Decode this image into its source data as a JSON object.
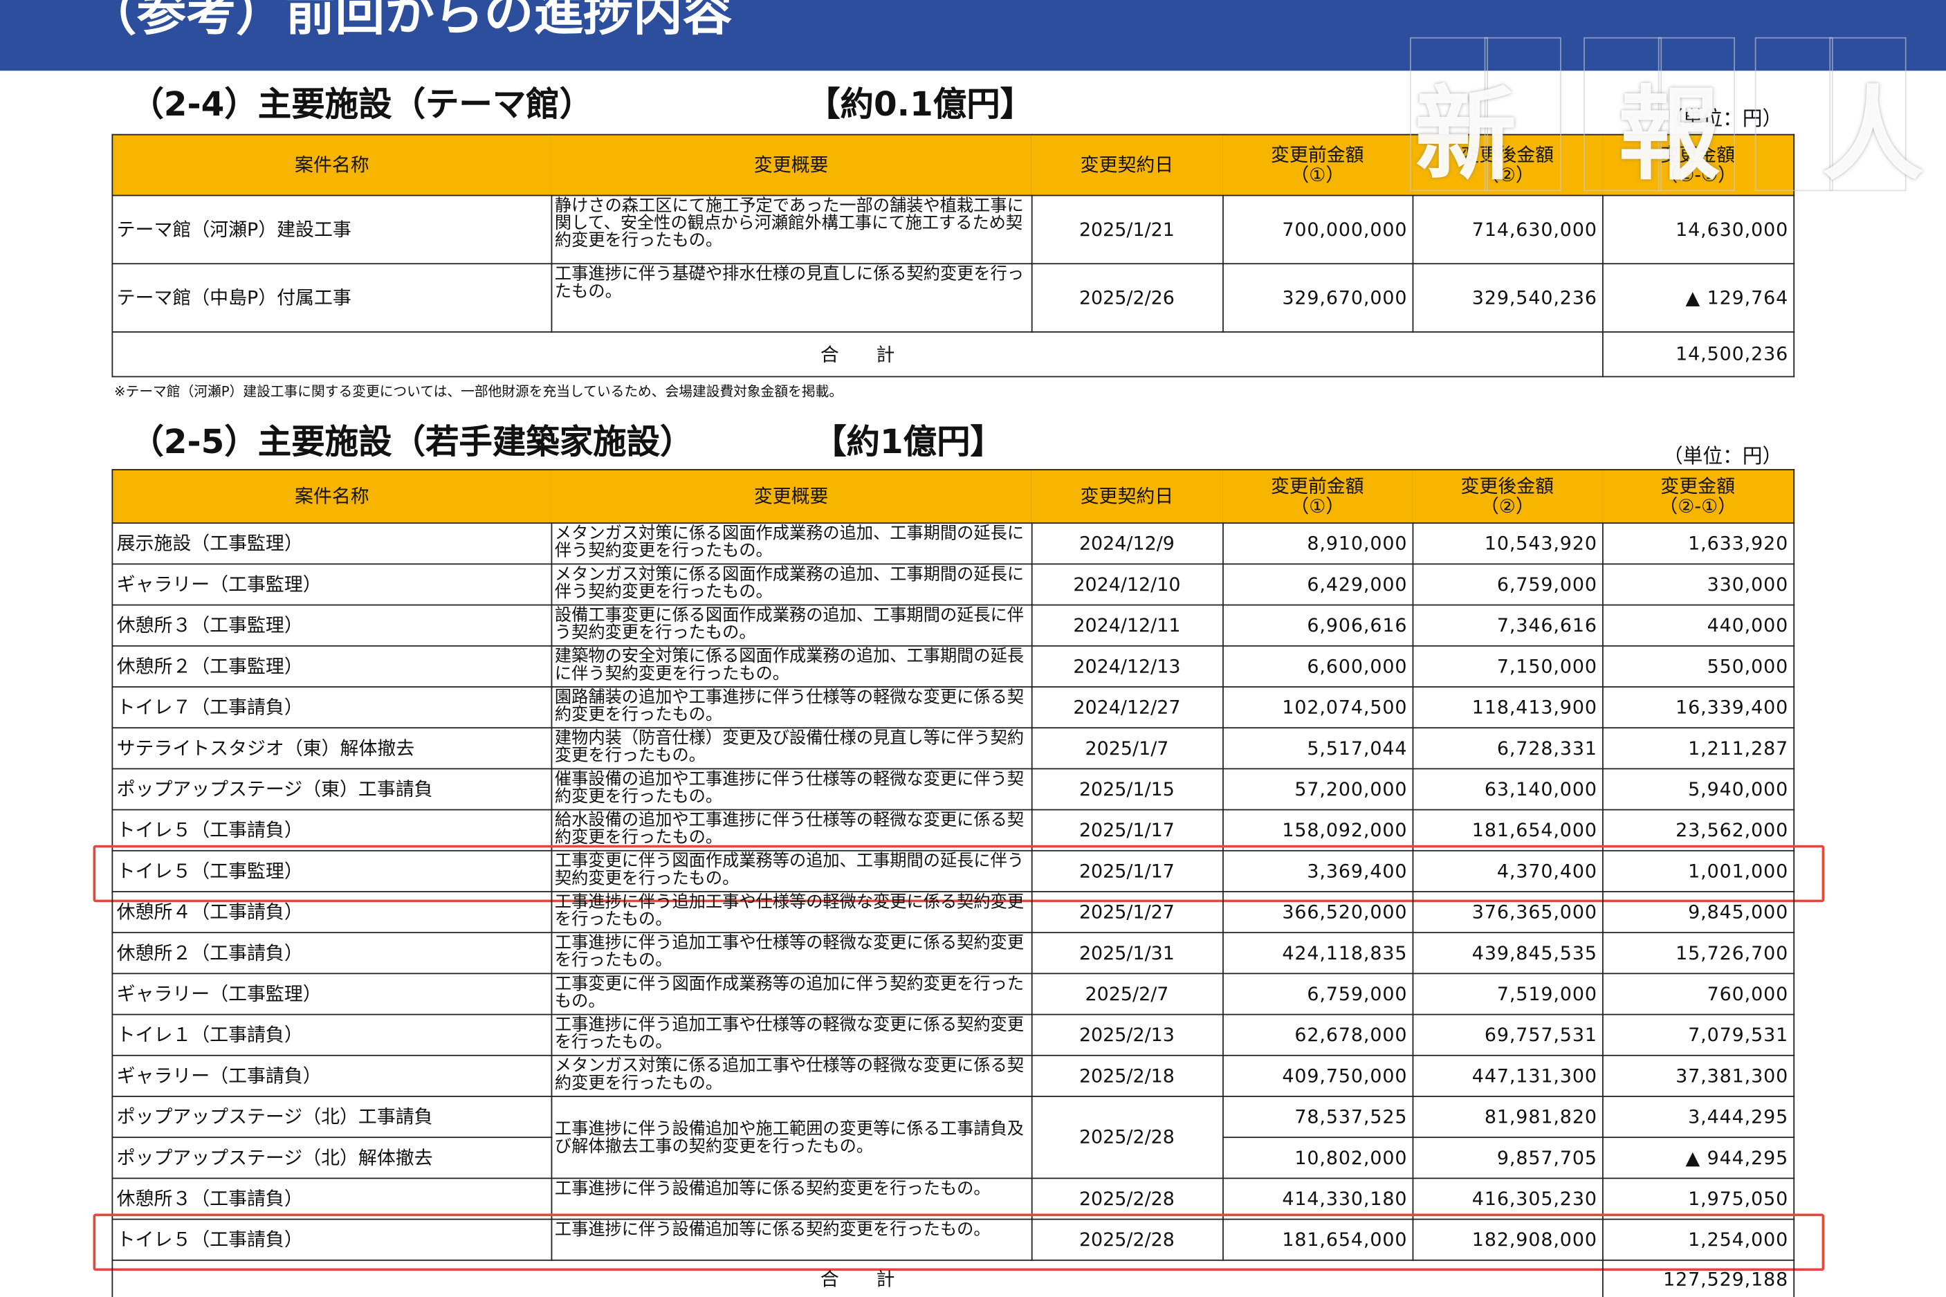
{
  "header": {
    "title": "（参考）前回からの進捗内容"
  },
  "watermark": "新　報　人",
  "columns": [
    "案件名称",
    "変更概要",
    "変更契約日",
    "変更前金額\n（①）",
    "変更後金額\n（②）",
    "変更金額\n（②-①）"
  ],
  "sections": [
    {
      "title": "（2-4）主要施設（テーマ館）",
      "amount": "【約0.1億円】",
      "unit": "（単位：円）",
      "rows": [
        {
          "name": "テーマ館（河瀬P）建設工事",
          "summary": "静けさの森工区にて施工予定であった一部の舗装や植栽工事に関して、安全性の観点から河瀬館外構工事にて施工するため契約変更を行ったもの。",
          "date": "2025/1/21",
          "before": "700,000,000",
          "after": "714,630,000",
          "change": "14,630,000"
        },
        {
          "name": "テーマ館（中島P）付属工事",
          "summary": "工事進捗に伴う基礎や排水仕様の見直しに係る契約変更を行ったもの。",
          "date": "2025/2/26",
          "before": "329,670,000",
          "after": "329,540,236",
          "change": "▲ 129,764"
        }
      ],
      "total": {
        "label": "合　　計",
        "value": "14,500,236"
      },
      "note": "※テーマ館（河瀬P）建設工事に関する変更については、一部他財源を充当しているため、会場建設費対象金額を掲載。"
    },
    {
      "title": "（2-5）主要施設（若手建築家施設）",
      "amount": "【約1億円】",
      "unit": "（単位：円）",
      "rows": [
        {
          "name": "展示施設（工事監理）",
          "summary": "メタンガス対策に係る図面作成業務の追加、工事期間の延長に伴う契約変更を行ったもの。",
          "date": "2024/12/9",
          "before": "8,910,000",
          "after": "10,543,920",
          "change": "1,633,920"
        },
        {
          "name": "ギャラリー（工事監理）",
          "summary": "メタンガス対策に係る図面作成業務の追加、工事期間の延長に伴う契約変更を行ったもの。",
          "date": "2024/12/10",
          "before": "6,429,000",
          "after": "6,759,000",
          "change": "330,000"
        },
        {
          "name": "休憩所３（工事監理）",
          "summary": "設備工事変更に係る図面作成業務の追加、工事期間の延長に伴う契約変更を行ったもの。",
          "date": "2024/12/11",
          "before": "6,906,616",
          "after": "7,346,616",
          "change": "440,000"
        },
        {
          "name": "休憩所２（工事監理）",
          "summary": "建築物の安全対策に係る図面作成業務の追加、工事期間の延長に伴う契約変更を行ったもの。",
          "date": "2024/12/13",
          "before": "6,600,000",
          "after": "7,150,000",
          "change": "550,000"
        },
        {
          "name": "トイレ７（工事請負）",
          "summary": "園路舗装の追加や工事進捗に伴う仕様等の軽微な変更に係る契約変更を行ったもの。",
          "date": "2024/12/27",
          "before": "102,074,500",
          "after": "118,413,900",
          "change": "16,339,400"
        },
        {
          "name": "サテライトスタジオ（東）解体撤去",
          "summary": "建物内装（防音仕様）変更及び設備仕様の見直し等に伴う契約変更を行ったもの。",
          "date": "2025/1/7",
          "before": "5,517,044",
          "after": "6,728,331",
          "change": "1,211,287"
        },
        {
          "name": "ポップアップステージ（東）工事請負",
          "summary": "催事設備の追加や工事進捗に伴う仕様等の軽微な変更に伴う契約変更を行ったもの。",
          "date": "2025/1/15",
          "before": "57,200,000",
          "after": "63,140,000",
          "change": "5,940,000"
        },
        {
          "name": "トイレ５（工事請負）",
          "summary": "給水設備の追加や工事進捗に伴う仕様等の軽微な変更に係る契約変更を行ったもの。",
          "date": "2025/1/17",
          "before": "158,092,000",
          "after": "181,654,000",
          "change": "23,562,000"
        },
        {
          "name": "トイレ５（工事監理）",
          "summary": "工事変更に伴う図面作成業務等の追加、工事期間の延長に伴う契約変更を行ったもの。",
          "date": "2025/1/17",
          "before": "3,369,400",
          "after": "4,370,400",
          "change": "1,001,000",
          "highlighted": true
        },
        {
          "name": "休憩所４（工事請負）",
          "summary": "工事進捗に伴う追加工事や仕様等の軽微な変更に係る契約変更を行ったもの。",
          "date": "2025/1/27",
          "before": "366,520,000",
          "after": "376,365,000",
          "change": "9,845,000"
        },
        {
          "name": "休憩所２（工事請負）",
          "summary": "工事進捗に伴う追加工事や仕様等の軽微な変更に係る契約変更を行ったもの。",
          "date": "2025/1/31",
          "before": "424,118,835",
          "after": "439,845,535",
          "change": "15,726,700"
        },
        {
          "name": "ギャラリー（工事監理）",
          "summary": "工事変更に伴う図面作成業務等の追加に伴う契約変更を行ったもの。",
          "date": "2025/2/7",
          "before": "6,759,000",
          "after": "7,519,000",
          "change": "760,000"
        },
        {
          "name": "トイレ１（工事請負）",
          "summary": "工事進捗に伴う追加工事や仕様等の軽微な変更に係る契約変更を行ったもの。",
          "date": "2025/2/13",
          "before": "62,678,000",
          "after": "69,757,531",
          "change": "7,079,531"
        },
        {
          "name": "ギャラリー（工事請負）",
          "summary": "メタンガス対策に係る追加工事や仕様等の軽微な変更に係る契約変更を行ったもの。",
          "date": "2025/2/18",
          "before": "409,750,000",
          "after": "447,131,300",
          "change": "37,381,300"
        },
        {
          "name": "ポップアップステージ（北）工事請負",
          "summary": "工事進捗に伴う設備追加や施工範囲の変更等に係る工事請負及び解体撤去工事の契約変更を行ったもの。",
          "date": "2025/2/28",
          "before": "78,537,525",
          "after": "81,981,820",
          "change": "3,444,295"
        },
        {
          "name": "ポップアップステージ（北）解体撤去",
          "before": "10,802,000",
          "after": "9,857,705",
          "change": "▲ 944,295"
        },
        {
          "name": "休憩所３（工事請負）",
          "summary": "工事進捗に伴う設備追加等に係る契約変更を行ったもの。",
          "date": "2025/2/28",
          "before": "414,330,180",
          "after": "416,305,230",
          "change": "1,975,050"
        },
        {
          "name": "トイレ５（工事請負）",
          "summary": "工事進捗に伴う設備追加等に係る契約変更を行ったもの。",
          "date": "2025/2/28",
          "before": "181,654,000",
          "after": "182,908,000",
          "change": "1,254,000",
          "highlighted": true
        }
      ],
      "total": {
        "label": "合　　計",
        "value": "127,529,188"
      }
    }
  ]
}
